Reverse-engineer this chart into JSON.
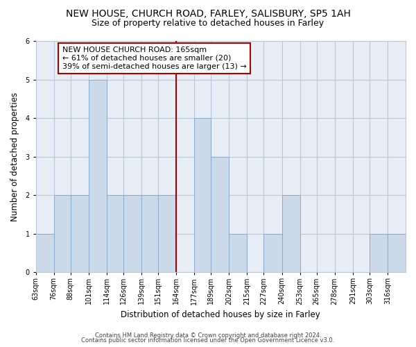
{
  "title": "NEW HOUSE, CHURCH ROAD, FARLEY, SALISBURY, SP5 1AH",
  "subtitle": "Size of property relative to detached houses in Farley",
  "xlabel": "Distribution of detached houses by size in Farley",
  "ylabel": "Number of detached properties",
  "bin_labels": [
    "63sqm",
    "76sqm",
    "88sqm",
    "101sqm",
    "114sqm",
    "126sqm",
    "139sqm",
    "151sqm",
    "164sqm",
    "177sqm",
    "189sqm",
    "202sqm",
    "215sqm",
    "227sqm",
    "240sqm",
    "253sqm",
    "265sqm",
    "278sqm",
    "291sqm",
    "303sqm",
    "316sqm"
  ],
  "bin_edges": [
    63,
    76,
    88,
    101,
    114,
    126,
    139,
    151,
    164,
    177,
    189,
    202,
    215,
    227,
    240,
    253,
    265,
    278,
    291,
    303,
    316,
    329
  ],
  "counts": [
    1,
    2,
    2,
    5,
    2,
    2,
    2,
    2,
    0,
    4,
    3,
    1,
    0,
    1,
    2,
    0,
    0,
    0,
    0,
    1,
    1
  ],
  "bar_facecolor": "#ccd9e8",
  "bar_edgecolor": "#88aacc",
  "reference_line_x": 164,
  "reference_line_color": "#aa0000",
  "annotation_text": "NEW HOUSE CHURCH ROAD: 165sqm\n← 61% of detached houses are smaller (20)\n39% of semi-detached houses are larger (13) →",
  "annotation_box_edgecolor": "#aa0000",
  "annotation_box_facecolor": "#ffffff",
  "ylim": [
    0,
    6
  ],
  "yticks": [
    0,
    1,
    2,
    3,
    4,
    5,
    6
  ],
  "grid_color": "#b8c8d8",
  "bg_color": "#e8eef5",
  "footer_line1": "Contains HM Land Registry data © Crown copyright and database right 2024.",
  "footer_line2": "Contains public sector information licensed under the Open Government Licence v3.0.",
  "title_fontsize": 10,
  "subtitle_fontsize": 9,
  "axis_label_fontsize": 8.5,
  "tick_fontsize": 7,
  "annotation_fontsize": 8,
  "footer_fontsize": 6
}
